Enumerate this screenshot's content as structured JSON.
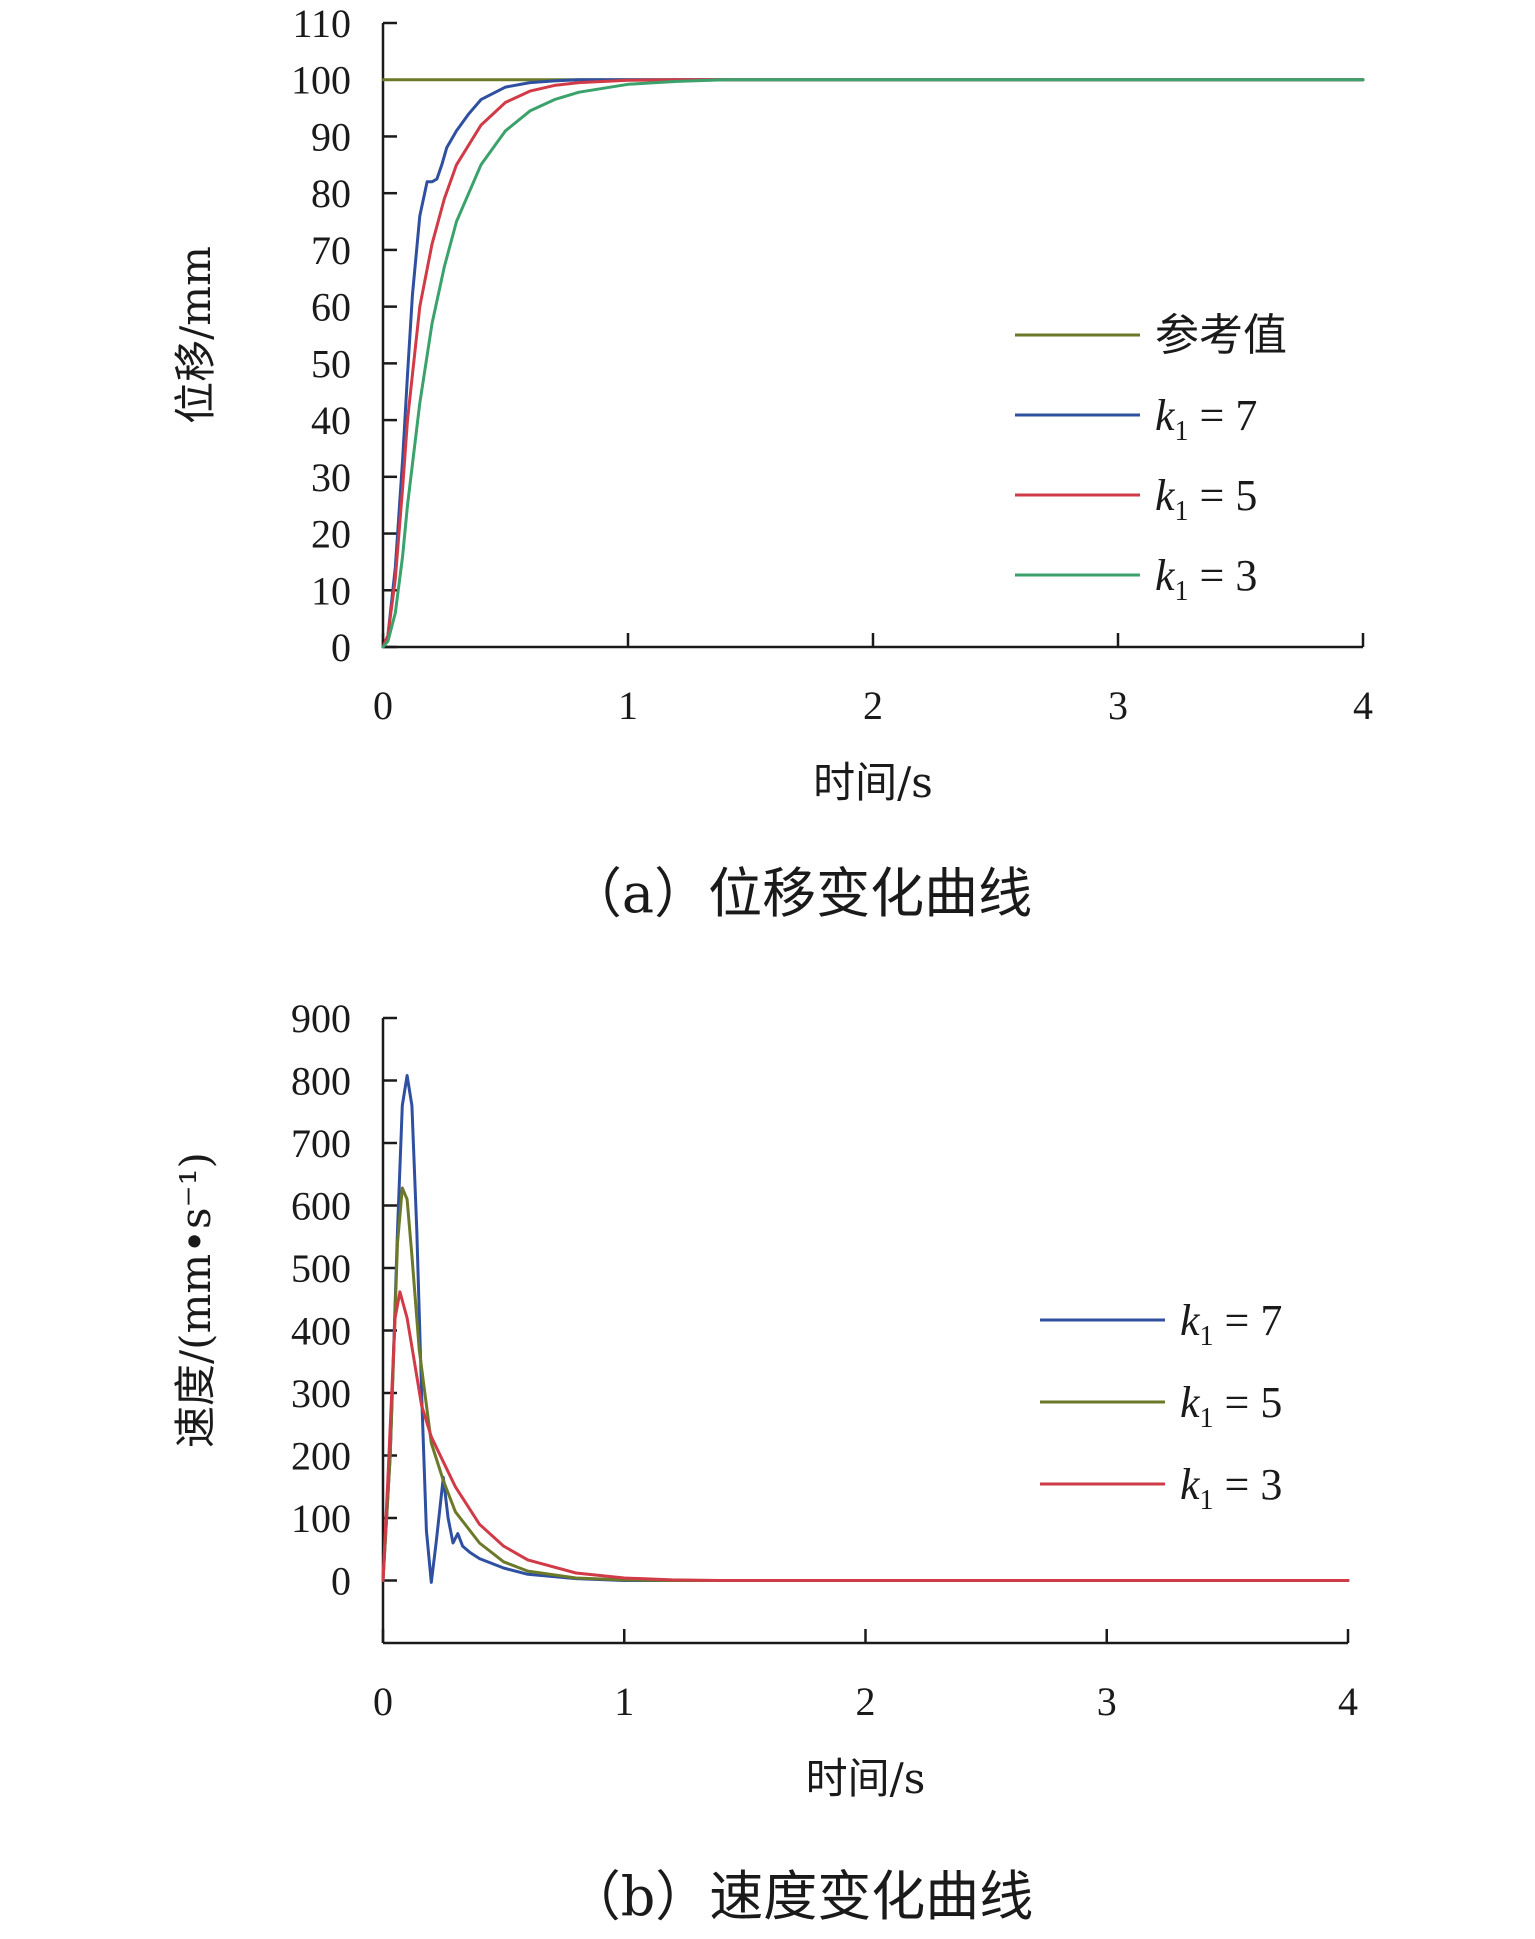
{
  "chart_data": [
    {
      "type": "line",
      "caption": "（a）位移变化曲线",
      "xlabel": "时间/s",
      "ylabel": "位移/mm",
      "xlim": [
        0,
        4
      ],
      "ylim": [
        0,
        110
      ],
      "xticks": [
        "0",
        "1",
        "2",
        "3",
        "4"
      ],
      "yticks": [
        "0",
        "10",
        "20",
        "30",
        "40",
        "50",
        "60",
        "70",
        "80",
        "90",
        "100",
        "110"
      ],
      "grid": false,
      "legend_position": "right-middle",
      "series": [
        {
          "name": "参考值",
          "legend_var": "",
          "legend_sub": "",
          "legend_rest": "",
          "color": "#6b7a2a",
          "x": [
            0,
            4
          ],
          "y": [
            100,
            100
          ]
        },
        {
          "name": "k1 = 7",
          "legend_var": "k",
          "legend_sub": "1",
          "legend_rest": " = 7",
          "color": "#2f4fa0",
          "x": [
            0,
            0.02,
            0.05,
            0.08,
            0.1,
            0.12,
            0.15,
            0.18,
            0.2,
            0.22,
            0.24,
            0.26,
            0.3,
            0.35,
            0.4,
            0.5,
            0.6,
            0.7,
            0.8,
            1.0,
            4.0
          ],
          "y": [
            0,
            2,
            14,
            33,
            48,
            62,
            76,
            82,
            82,
            82.5,
            85,
            88,
            91,
            94,
            96.5,
            98.7,
            99.5,
            99.8,
            100,
            100,
            100
          ]
        },
        {
          "name": "k1 = 5",
          "legend_var": "k",
          "legend_sub": "1",
          "legend_rest": " = 5",
          "color": "#d13b47",
          "x": [
            0,
            0.02,
            0.05,
            0.08,
            0.1,
            0.15,
            0.2,
            0.25,
            0.3,
            0.4,
            0.5,
            0.6,
            0.7,
            0.8,
            1.0,
            1.2,
            4.0
          ],
          "y": [
            0,
            2,
            12,
            28,
            40,
            60,
            71,
            79,
            85,
            92,
            96,
            98,
            99,
            99.5,
            99.9,
            100,
            100
          ]
        },
        {
          "name": "k1 = 3",
          "legend_var": "k",
          "legend_sub": "1",
          "legend_rest": " = 3",
          "color": "#3aa26a",
          "x": [
            0,
            0.02,
            0.05,
            0.08,
            0.1,
            0.15,
            0.2,
            0.25,
            0.3,
            0.4,
            0.5,
            0.6,
            0.7,
            0.8,
            1.0,
            1.2,
            1.4,
            4.0
          ],
          "y": [
            0,
            1,
            6,
            16,
            25,
            43,
            57,
            67,
            75,
            85,
            91,
            94.5,
            96.5,
            97.8,
            99.2,
            99.7,
            100,
            100
          ]
        }
      ]
    },
    {
      "type": "line",
      "caption": "（b）速度变化曲线",
      "xlabel": "时间/s",
      "ylabel": "速度/(mm•s⁻¹)",
      "xlim": [
        0,
        4
      ],
      "ylim": [
        -100,
        900
      ],
      "xticks": [
        "0",
        "1",
        "2",
        "3",
        "4"
      ],
      "yticks": [
        "0",
        "100",
        "200",
        "300",
        "400",
        "500",
        "600",
        "700",
        "800",
        "900"
      ],
      "grid": false,
      "legend_position": "right-middle",
      "series": [
        {
          "name": "k1 = 7",
          "legend_var": "k",
          "legend_sub": "1",
          "legend_rest": " = 7",
          "color": "#2f4fa0",
          "x": [
            0,
            0.03,
            0.06,
            0.08,
            0.1,
            0.12,
            0.14,
            0.16,
            0.18,
            0.2,
            0.22,
            0.25,
            0.27,
            0.29,
            0.31,
            0.33,
            0.36,
            0.4,
            0.5,
            0.6,
            0.8,
            1.0,
            4.0
          ],
          "y": [
            0,
            200,
            560,
            760,
            808,
            760,
            560,
            300,
            80,
            -3,
            60,
            165,
            100,
            60,
            75,
            55,
            45,
            35,
            20,
            10,
            3,
            0,
            0
          ]
        },
        {
          "name": "k1 = 5",
          "legend_var": "k",
          "legend_sub": "1",
          "legend_rest": " = 5",
          "color": "#6b7a2a",
          "x": [
            0,
            0.03,
            0.06,
            0.08,
            0.1,
            0.12,
            0.15,
            0.2,
            0.25,
            0.3,
            0.4,
            0.5,
            0.6,
            0.8,
            1.0,
            1.2,
            4.0
          ],
          "y": [
            0,
            200,
            540,
            628,
            610,
            520,
            370,
            220,
            160,
            110,
            60,
            30,
            15,
            4,
            1,
            0,
            0
          ]
        },
        {
          "name": "k1 = 3",
          "legend_var": "k",
          "legend_sub": "1",
          "legend_rest": " = 3",
          "color": "#d13b47",
          "x": [
            0,
            0.02,
            0.05,
            0.07,
            0.1,
            0.13,
            0.16,
            0.2,
            0.25,
            0.3,
            0.4,
            0.5,
            0.6,
            0.8,
            1.0,
            1.2,
            1.4,
            4.0
          ],
          "y": [
            0,
            160,
            420,
            462,
            420,
            350,
            280,
            230,
            190,
            150,
            90,
            55,
            33,
            12,
            4,
            1,
            0,
            0
          ]
        }
      ]
    }
  ]
}
